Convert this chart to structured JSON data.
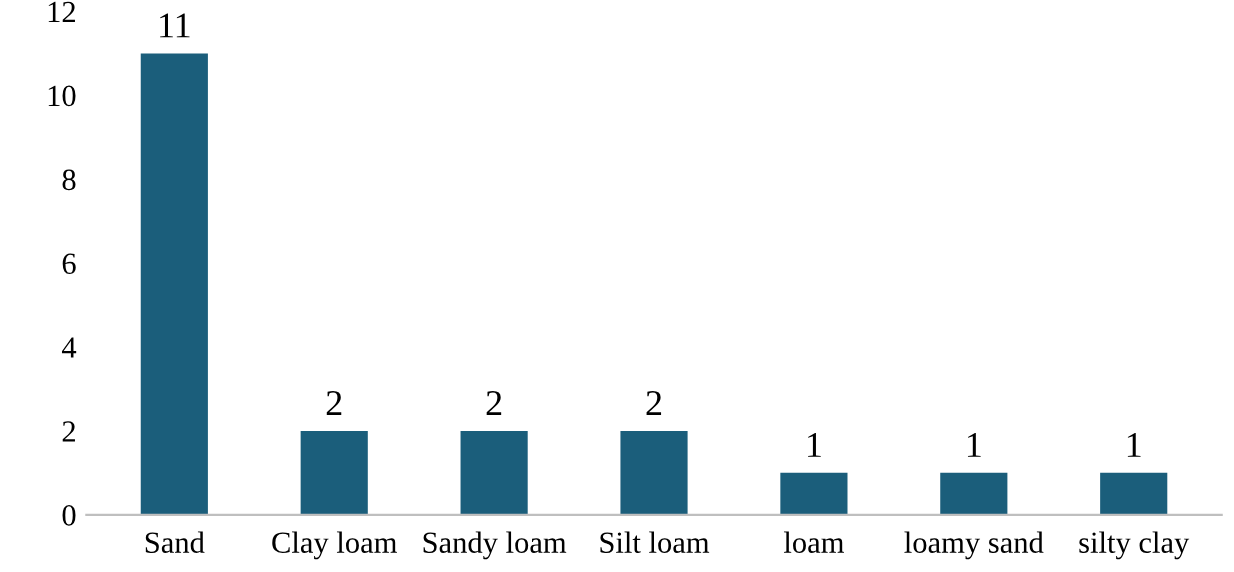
{
  "chart_data": {
    "type": "bar",
    "categories": [
      "Sand",
      "Clay loam",
      "Sandy loam",
      "Silt loam",
      "loam",
      "loamy sand",
      "silty clay"
    ],
    "values": [
      11,
      2,
      2,
      2,
      1,
      1,
      1
    ],
    "color": "#1b5e7b",
    "ylim": [
      0,
      12
    ],
    "yticks": [
      0,
      2,
      4,
      6,
      8,
      10,
      12
    ],
    "data_labels": true,
    "grid": false,
    "legend": false
  }
}
